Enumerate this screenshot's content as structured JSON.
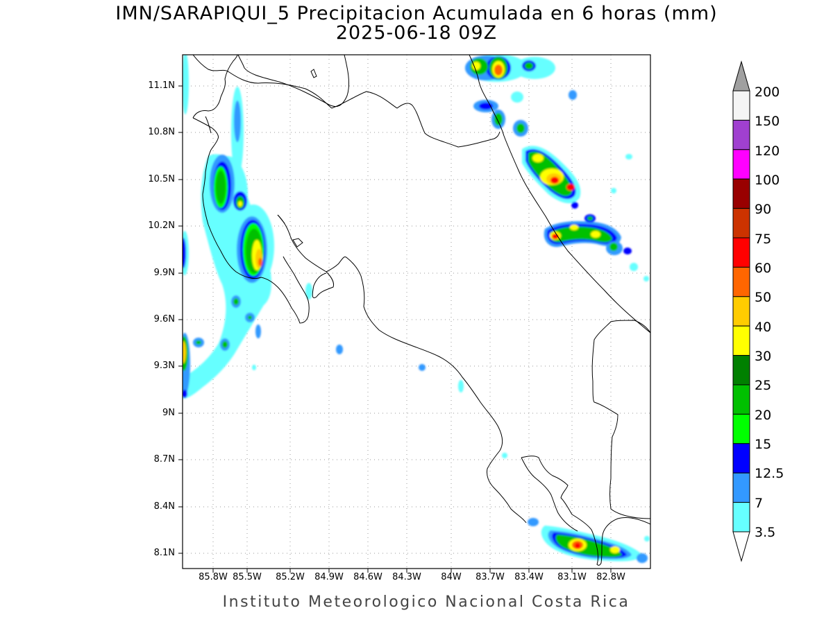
{
  "title_line1": "IMN/SARAPIQUI_5 Precipitacion Acumulada en 6 horas (mm)",
  "title_line2": "2025-06-18 09Z",
  "credit": "Instituto Meteorologico Nacional Costa Rica",
  "latitude_labels": [
    "11.1N",
    "10.8N",
    "10.5N",
    "10.2N",
    "9.9N",
    "9.6N",
    "9.3N",
    "9N",
    "8.7N",
    "8.4N",
    "8.1N"
  ],
  "longitude_labels": [
    "85.8W",
    "85.5W",
    "85.2W",
    "84.9W",
    "84.6W",
    "84.3W",
    "84W",
    "83.7W",
    "83.4W",
    "83.1W",
    "82.8W"
  ],
  "colorbar": {
    "labels": [
      "200",
      "150",
      "120",
      "100",
      "90",
      "75",
      "60",
      "50",
      "40",
      "30",
      "25",
      "20",
      "15",
      "12.5",
      "7",
      "3.5"
    ],
    "colors": [
      "#f5f5f5",
      "#a040d0",
      "#ff00ff",
      "#990000",
      "#cc3300",
      "#ff0000",
      "#ff6600",
      "#ffcc00",
      "#ffff00",
      "#008000",
      "#00c000",
      "#00ff00",
      "#0000ff",
      "#3399ff",
      "#66ffff"
    ],
    "over_color": "#a0a0a0",
    "under_color": "#ffffff"
  }
}
